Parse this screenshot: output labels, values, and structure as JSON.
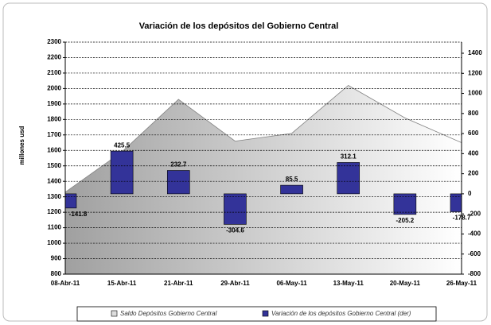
{
  "chart_data": {
    "type": "combo",
    "title": "Variación de los depósitos del Gobierno Central",
    "ylabel": "millones usd",
    "categories": [
      "08-Abr-11",
      "15-Abr-11",
      "21-Abr-11",
      "29-Abr-11",
      "06-May-11",
      "13-May-11",
      "20-May-11",
      "26-May-11"
    ],
    "series": [
      {
        "name": "Saldo Depósitos Gobierno Central",
        "type": "area",
        "axis": "y",
        "color": "#a6a6a6",
        "values": [
          1330,
          1590,
          1930,
          1660,
          1710,
          2020,
          1810,
          1650
        ]
      },
      {
        "name": "Variación de los depósitos Gobierno Central (der)",
        "type": "bar",
        "axis": "y2",
        "color": "#333399",
        "values": [
          -141.8,
          425.5,
          232.7,
          -304.6,
          85.5,
          312.1,
          -205.2,
          -178.7
        ]
      }
    ],
    "ylim": [
      800,
      2300
    ],
    "yticks": [
      800,
      900,
      1000,
      1100,
      1200,
      1300,
      1400,
      1500,
      1600,
      1700,
      1800,
      1900,
      2000,
      2100,
      2200,
      2300
    ],
    "y2lim": [
      -800,
      1400
    ],
    "y2ticks": [
      -800,
      -600,
      -400,
      -200,
      0,
      200,
      400,
      600,
      800,
      1000,
      1200,
      1400
    ],
    "grid": true,
    "legend": "bottom"
  }
}
